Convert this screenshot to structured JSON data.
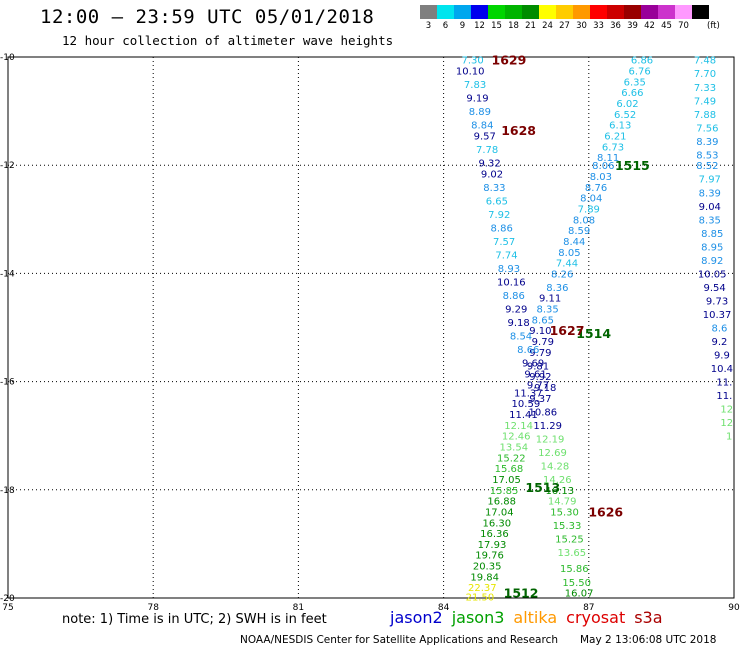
{
  "header": {
    "title": "12:00 – 23:59 UTC 05/01/2018",
    "subtitle": "12 hour collection of altimeter wave heights"
  },
  "color_scale": {
    "unit": "(ft)",
    "bins": [
      {
        "label": "3",
        "color": "#7f7f7f"
      },
      {
        "label": "6",
        "color": "#00e5ee"
      },
      {
        "label": "9",
        "color": "#00a7ee"
      },
      {
        "label": "12",
        "color": "#0000ee"
      },
      {
        "label": "15",
        "color": "#00d600"
      },
      {
        "label": "18",
        "color": "#00b400"
      },
      {
        "label": "21",
        "color": "#008c00"
      },
      {
        "label": "24",
        "color": "#ffff00"
      },
      {
        "label": "27",
        "color": "#ffcc00"
      },
      {
        "label": "30",
        "color": "#ff9900"
      },
      {
        "label": "33",
        "color": "#ff0000"
      },
      {
        "label": "36",
        "color": "#cc0000"
      },
      {
        "label": "39",
        "color": "#990000"
      },
      {
        "label": "42",
        "color": "#990099"
      },
      {
        "label": "45",
        "color": "#cc33cc"
      },
      {
        "label": "70",
        "color": "#ff99ff"
      },
      {
        "label": "",
        "color": "#000000"
      }
    ]
  },
  "map": {
    "lon_range": [
      75,
      90
    ],
    "lat_range": [
      -20,
      -10
    ],
    "lon_ticks": [
      "75",
      "78",
      "81",
      "84",
      "87",
      "90"
    ],
    "lat_ticks": [
      "-10",
      "-12",
      "-14",
      "-16",
      "-18",
      "-20"
    ]
  },
  "track_colors": {
    "c6": "#1fc0e6",
    "c9": "#1e90e6",
    "c12": "#00008b",
    "c15": "#6ee06e",
    "c18": "#2cba2c",
    "c21": "#008a00",
    "c24": "#e6e600",
    "c27": "#ffb000",
    "time": "#7b0000",
    "time_j3": "#006400"
  },
  "tracks": {
    "jason2": {
      "times": [
        {
          "label": "1629",
          "lon": 85.35,
          "lat": -10.05
        },
        {
          "label": "1628",
          "lon": 85.55,
          "lat": -11.35
        },
        {
          "label": "1627",
          "lon": 86.55,
          "lat": -15.05
        }
      ],
      "points": [
        {
          "v": "7.30",
          "lon": 84.6,
          "lat": -10.05,
          "c": "c6"
        },
        {
          "v": "10.10",
          "lon": 84.55,
          "lat": -10.25,
          "c": "c12"
        },
        {
          "v": "7.83",
          "lon": 84.65,
          "lat": -10.5,
          "c": "c6"
        },
        {
          "v": "9.19",
          "lon": 84.7,
          "lat": -10.75,
          "c": "c12"
        },
        {
          "v": "8.89",
          "lon": 84.75,
          "lat": -11.0,
          "c": "c9"
        },
        {
          "v": "8.84",
          "lon": 84.8,
          "lat": -11.25,
          "c": "c9"
        },
        {
          "v": "9.57",
          "lon": 84.85,
          "lat": -11.45,
          "c": "c12"
        },
        {
          "v": "7.78",
          "lon": 84.9,
          "lat": -11.7,
          "c": "c6"
        },
        {
          "v": "9.32",
          "lon": 84.95,
          "lat": -11.95,
          "c": "c12"
        },
        {
          "v": "9.02",
          "lon": 85.0,
          "lat": -12.15,
          "c": "c12"
        },
        {
          "v": "8.33",
          "lon": 85.05,
          "lat": -12.4,
          "c": "c9"
        },
        {
          "v": "6.65",
          "lon": 85.1,
          "lat": -12.65,
          "c": "c6"
        },
        {
          "v": "7.92",
          "lon": 85.15,
          "lat": -12.9,
          "c": "c6"
        },
        {
          "v": "8.86",
          "lon": 85.2,
          "lat": -13.15,
          "c": "c9"
        },
        {
          "v": "7.57",
          "lon": 85.25,
          "lat": -13.4,
          "c": "c6"
        },
        {
          "v": "7.74",
          "lon": 85.3,
          "lat": -13.65,
          "c": "c6"
        },
        {
          "v": "8.93",
          "lon": 85.35,
          "lat": -13.9,
          "c": "c9"
        },
        {
          "v": "10.16",
          "lon": 85.4,
          "lat": -14.15,
          "c": "c12"
        },
        {
          "v": "8.86",
          "lon": 85.45,
          "lat": -14.4,
          "c": "c9"
        },
        {
          "v": "9.29",
          "lon": 85.5,
          "lat": -14.65,
          "c": "c12"
        },
        {
          "v": "9.18",
          "lon": 85.55,
          "lat": -14.9,
          "c": "c12"
        },
        {
          "v": "8.54",
          "lon": 85.6,
          "lat": -15.15,
          "c": "c9"
        },
        {
          "v": "8.66",
          "lon": 85.75,
          "lat": -15.4,
          "c": "c9"
        },
        {
          "v": "9.69",
          "lon": 85.85,
          "lat": -15.65,
          "c": "c12"
        },
        {
          "v": "9.61",
          "lon": 85.9,
          "lat": -15.85,
          "c": "c12"
        },
        {
          "v": "9.77",
          "lon": 85.95,
          "lat": -16.05,
          "c": "c12"
        },
        {
          "v": "11.37",
          "lon": 85.75,
          "lat": -16.2,
          "c": "c12"
        },
        {
          "v": "10.59",
          "lon": 85.7,
          "lat": -16.4,
          "c": "c12"
        },
        {
          "v": "11.41",
          "lon": 85.65,
          "lat": -16.6,
          "c": "c12"
        },
        {
          "v": "12.14",
          "lon": 85.55,
          "lat": -16.8,
          "c": "c15"
        },
        {
          "v": "12.46",
          "lon": 85.5,
          "lat": -17.0,
          "c": "c15"
        },
        {
          "v": "13.54",
          "lon": 85.45,
          "lat": -17.2,
          "c": "c15"
        },
        {
          "v": "15.22",
          "lon": 85.4,
          "lat": -17.4,
          "c": "c18"
        },
        {
          "v": "15.68",
          "lon": 85.35,
          "lat": -17.6,
          "c": "c18"
        },
        {
          "v": "17.05",
          "lon": 85.3,
          "lat": -17.8,
          "c": "c21"
        },
        {
          "v": "15.85",
          "lon": 85.25,
          "lat": -18.0,
          "c": "c18"
        },
        {
          "v": "16.88",
          "lon": 85.2,
          "lat": -18.2,
          "c": "c21"
        },
        {
          "v": "17.04",
          "lon": 85.15,
          "lat": -18.4,
          "c": "c21"
        },
        {
          "v": "16.30",
          "lon": 85.1,
          "lat": -18.6,
          "c": "c21"
        },
        {
          "v": "16.36",
          "lon": 85.05,
          "lat": -18.8,
          "c": "c21"
        },
        {
          "v": "17.93",
          "lon": 85.0,
          "lat": -19.0,
          "c": "c21"
        },
        {
          "v": "19.76",
          "lon": 84.95,
          "lat": -19.2,
          "c": "c21"
        },
        {
          "v": "20.35",
          "lon": 84.9,
          "lat": -19.4,
          "c": "c21"
        },
        {
          "v": "19.84",
          "lon": 84.85,
          "lat": -19.6,
          "c": "c21"
        },
        {
          "v": "22.37",
          "lon": 84.8,
          "lat": -19.8,
          "c": "c24"
        },
        {
          "v": "21.50",
          "lon": 84.75,
          "lat": -19.97,
          "c": "c24"
        }
      ]
    },
    "jason3": {
      "times": [
        {
          "label": "1515",
          "lon": 87.9,
          "lat": -12.0
        },
        {
          "label": "1514",
          "lon": 87.1,
          "lat": -15.1
        },
        {
          "label": "1513",
          "lon": 86.05,
          "lat": -17.95
        },
        {
          "label": "1512",
          "lon": 85.6,
          "lat": -19.9
        }
      ],
      "points": [
        {
          "v": "6.86",
          "lon": 88.1,
          "lat": -10.05,
          "c": "c6"
        },
        {
          "v": "6.76",
          "lon": 88.05,
          "lat": -10.25,
          "c": "c6"
        },
        {
          "v": "6.35",
          "lon": 87.95,
          "lat": -10.45,
          "c": "c6"
        },
        {
          "v": "6.66",
          "lon": 87.9,
          "lat": -10.65,
          "c": "c6"
        },
        {
          "v": "6.02",
          "lon": 87.8,
          "lat": -10.85,
          "c": "c6"
        },
        {
          "v": "6.52",
          "lon": 87.75,
          "lat": -11.05,
          "c": "c6"
        },
        {
          "v": "6.13",
          "lon": 87.65,
          "lat": -11.25,
          "c": "c6"
        },
        {
          "v": "6.21",
          "lon": 87.55,
          "lat": -11.45,
          "c": "c6"
        },
        {
          "v": "6.73",
          "lon": 87.5,
          "lat": -11.65,
          "c": "c6"
        },
        {
          "v": "8.11",
          "lon": 87.4,
          "lat": -11.85,
          "c": "c9"
        },
        {
          "v": "8.06",
          "lon": 87.3,
          "lat": -12.0,
          "c": "c9"
        },
        {
          "v": "8.03",
          "lon": 87.25,
          "lat": -12.2,
          "c": "c9"
        },
        {
          "v": "8.76",
          "lon": 87.15,
          "lat": -12.4,
          "c": "c9"
        },
        {
          "v": "8.04",
          "lon": 87.05,
          "lat": -12.6,
          "c": "c9"
        },
        {
          "v": "7.89",
          "lon": 87.0,
          "lat": -12.8,
          "c": "c6"
        },
        {
          "v": "8.08",
          "lon": 86.9,
          "lat": -13.0,
          "c": "c9"
        },
        {
          "v": "8.59",
          "lon": 86.8,
          "lat": -13.2,
          "c": "c9"
        },
        {
          "v": "8.44",
          "lon": 86.7,
          "lat": -13.4,
          "c": "c9"
        },
        {
          "v": "8.05",
          "lon": 86.6,
          "lat": -13.6,
          "c": "c9"
        },
        {
          "v": "7.44",
          "lon": 86.55,
          "lat": -13.8,
          "c": "c6"
        },
        {
          "v": "8.26",
          "lon": 86.45,
          "lat": -14.0,
          "c": "c9"
        },
        {
          "v": "8.36",
          "lon": 86.35,
          "lat": -14.25,
          "c": "c9"
        },
        {
          "v": "9.11",
          "lon": 86.2,
          "lat": -14.45,
          "c": "c12"
        },
        {
          "v": "8.35",
          "lon": 86.15,
          "lat": -14.65,
          "c": "c9"
        },
        {
          "v": "8.65",
          "lon": 86.05,
          "lat": -14.85,
          "c": "c9"
        },
        {
          "v": "9.10",
          "lon": 86.0,
          "lat": -15.05,
          "c": "c12"
        },
        {
          "v": "9.79",
          "lon": 86.05,
          "lat": -15.25,
          "c": "c12"
        },
        {
          "v": "9.79",
          "lon": 86.0,
          "lat": -15.45,
          "c": "c12"
        },
        {
          "v": "9.81",
          "lon": 85.95,
          "lat": -15.7,
          "c": "c12"
        },
        {
          "v": "9.92",
          "lon": 86.0,
          "lat": -15.9,
          "c": "c12"
        },
        {
          "v": "9.18",
          "lon": 86.1,
          "lat": -16.1,
          "c": "c12"
        },
        {
          "v": "9.37",
          "lon": 86.0,
          "lat": -16.3,
          "c": "c12"
        },
        {
          "v": "10.86",
          "lon": 86.05,
          "lat": -16.55,
          "c": "c12"
        },
        {
          "v": "11.29",
          "lon": 86.15,
          "lat": -16.8,
          "c": "c12"
        },
        {
          "v": "12.19",
          "lon": 86.2,
          "lat": -17.05,
          "c": "c15"
        },
        {
          "v": "12.69",
          "lon": 86.25,
          "lat": -17.3,
          "c": "c15"
        },
        {
          "v": "14.28",
          "lon": 86.3,
          "lat": -17.55,
          "c": "c15"
        },
        {
          "v": "14.26",
          "lon": 86.35,
          "lat": -17.8,
          "c": "c15"
        },
        {
          "v": "16.13",
          "lon": 86.4,
          "lat": -18.0,
          "c": "c21"
        },
        {
          "v": "14.79",
          "lon": 86.45,
          "lat": -18.2,
          "c": "c15"
        },
        {
          "v": "15.30",
          "lon": 86.5,
          "lat": -18.4,
          "c": "c18"
        },
        {
          "v": "15.33",
          "lon": 86.55,
          "lat": -18.65,
          "c": "c18"
        },
        {
          "v": "15.25",
          "lon": 86.6,
          "lat": -18.9,
          "c": "c18"
        },
        {
          "v": "13.65",
          "lon": 86.65,
          "lat": -19.15,
          "c": "c15"
        },
        {
          "v": "15.86",
          "lon": 86.7,
          "lat": -19.45,
          "c": "c18"
        },
        {
          "v": "15.50",
          "lon": 86.75,
          "lat": -19.7,
          "c": "c18"
        },
        {
          "v": "16.07",
          "lon": 86.8,
          "lat": -19.9,
          "c": "c21"
        }
      ]
    },
    "cryosat": {
      "times": [
        {
          "label": "1626",
          "lon": 87.35,
          "lat": -18.4
        }
      ]
    },
    "s3a_edge": {
      "points": [
        {
          "v": "7.48",
          "lon": 89.4,
          "lat": -10.05,
          "c": "c6"
        },
        {
          "v": "7.70",
          "lon": 89.4,
          "lat": -10.3,
          "c": "c6"
        },
        {
          "v": "7.33",
          "lon": 89.4,
          "lat": -10.55,
          "c": "c6"
        },
        {
          "v": "7.49",
          "lon": 89.4,
          "lat": -10.8,
          "c": "c6"
        },
        {
          "v": "7.88",
          "lon": 89.4,
          "lat": -11.05,
          "c": "c6"
        },
        {
          "v": "7.56",
          "lon": 89.45,
          "lat": -11.3,
          "c": "c6"
        },
        {
          "v": "8.39",
          "lon": 89.45,
          "lat": -11.55,
          "c": "c9"
        },
        {
          "v": "8.53",
          "lon": 89.45,
          "lat": -11.8,
          "c": "c9"
        },
        {
          "v": "8.52",
          "lon": 89.45,
          "lat": -12.0,
          "c": "c9"
        },
        {
          "v": "7.97",
          "lon": 89.5,
          "lat": -12.25,
          "c": "c6"
        },
        {
          "v": "8.39",
          "lon": 89.5,
          "lat": -12.5,
          "c": "c9"
        },
        {
          "v": "9.04",
          "lon": 89.5,
          "lat": -12.75,
          "c": "c12"
        },
        {
          "v": "8.35",
          "lon": 89.5,
          "lat": -13.0,
          "c": "c9"
        },
        {
          "v": "8.85",
          "lon": 89.55,
          "lat": -13.25,
          "c": "c9"
        },
        {
          "v": "8.95",
          "lon": 89.55,
          "lat": -13.5,
          "c": "c9"
        },
        {
          "v": "8.92",
          "lon": 89.55,
          "lat": -13.75,
          "c": "c9"
        },
        {
          "v": "10.05",
          "lon": 89.55,
          "lat": -14.0,
          "c": "c12"
        },
        {
          "v": "9.54",
          "lon": 89.6,
          "lat": -14.25,
          "c": "c12"
        },
        {
          "v": "9.73",
          "lon": 89.65,
          "lat": -14.5,
          "c": "c12"
        },
        {
          "v": "10.37",
          "lon": 89.65,
          "lat": -14.75,
          "c": "c12"
        },
        {
          "v": "8.6",
          "lon": 89.7,
          "lat": -15.0,
          "c": "c9"
        },
        {
          "v": "9.2",
          "lon": 89.7,
          "lat": -15.25,
          "c": "c12"
        },
        {
          "v": "9.9",
          "lon": 89.75,
          "lat": -15.5,
          "c": "c12"
        },
        {
          "v": "10.4",
          "lon": 89.75,
          "lat": -15.75,
          "c": "c12"
        },
        {
          "v": "11.",
          "lon": 89.8,
          "lat": -16.0,
          "c": "c12"
        },
        {
          "v": "11.",
          "lon": 89.8,
          "lat": -16.25,
          "c": "c12"
        },
        {
          "v": "12",
          "lon": 89.85,
          "lat": -16.5,
          "c": "c15"
        },
        {
          "v": "12",
          "lon": 89.85,
          "lat": -16.75,
          "c": "c15"
        },
        {
          "v": "1",
          "lon": 89.9,
          "lat": -17.0,
          "c": "c15"
        }
      ]
    }
  },
  "note": "note:  1) Time is in UTC;  2) SWH is in feet",
  "satellites": [
    {
      "name": "jason2",
      "color": "#0000cc"
    },
    {
      "name": "jason3",
      "color": "#00a000"
    },
    {
      "name": "altika",
      "color": "#ff9900"
    },
    {
      "name": "cryosat",
      "color": "#dd0000"
    },
    {
      "name": "s3a",
      "color": "#aa0000"
    }
  ],
  "footer": {
    "credit": "NOAA/NESDIS Center for Satellite Applications and Research",
    "stamp": "May  2 13:06:08 UTC 2018"
  }
}
